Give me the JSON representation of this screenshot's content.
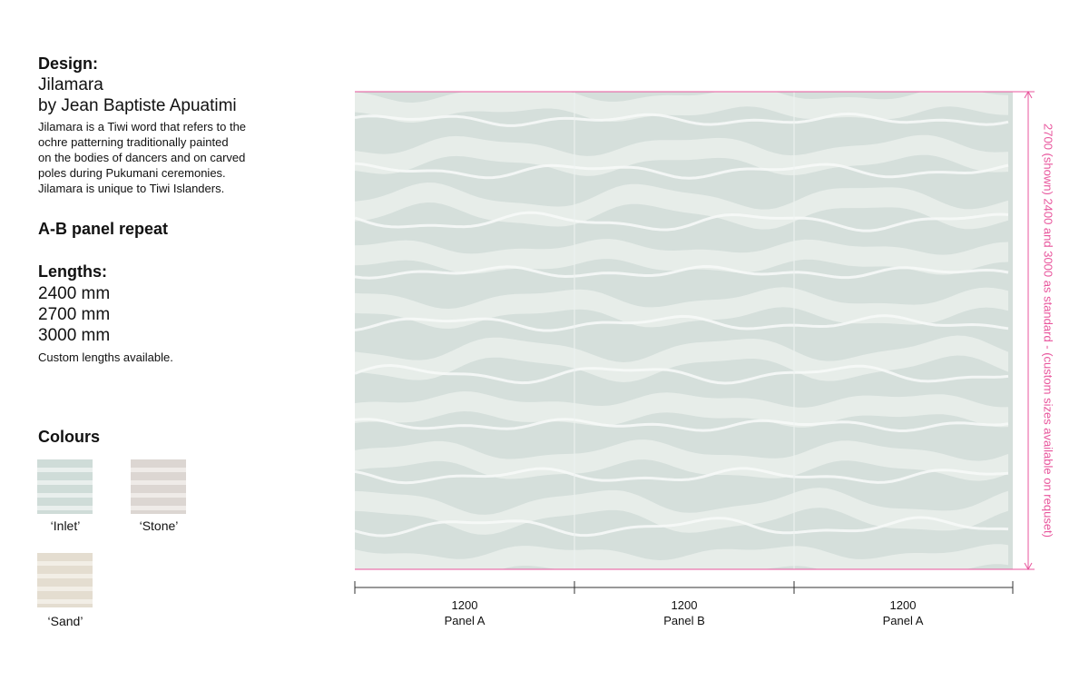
{
  "design": {
    "heading": "Design:",
    "name": "Jilamara",
    "artist": "by Jean Baptiste Apuatimi",
    "description": [
      "Jilamara is a Tiwi word that refers to the",
      "ochre patterning traditionally painted",
      "on the bodies of dancers and on carved",
      "poles during Pukumani ceremonies.",
      "Jilamara is unique to Tiwi Islanders."
    ]
  },
  "repeat": "A-B panel repeat",
  "lengths": {
    "heading": "Lengths:",
    "items": [
      "2400 mm",
      "2700 mm",
      "3000 mm"
    ],
    "note": "Custom lengths available."
  },
  "colours": {
    "heading": "Colours",
    "items": [
      "‘Inlet’",
      "‘Stone’",
      "‘Sand’"
    ]
  },
  "height_note": "2700 (shown) 2400 and 3000 as standard - (custom sizes available on requset)",
  "panels": [
    {
      "width": 1200,
      "label": "Panel A"
    },
    {
      "width": 1200,
      "label": "Panel B"
    },
    {
      "width": 1200,
      "label": "Panel A"
    }
  ]
}
